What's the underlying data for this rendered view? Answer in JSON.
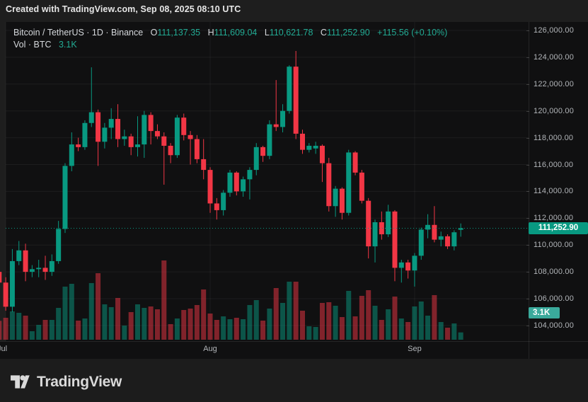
{
  "attribution": "Created with TradingView.com, Sep 08, 2025 08:10 UTC",
  "legend": {
    "symbol_title": "Bitcoin / TetherUS · 1D · Binance",
    "o_label": "O",
    "o_value": "111,137.35",
    "h_label": "H",
    "h_value": "111,609.04",
    "l_label": "L",
    "l_value": "110,621.78",
    "c_label": "C",
    "c_value": "111,252.90",
    "change": "+115.56 (+0.10%)",
    "vol_label": "Vol · BTC",
    "vol_value": "3.1K"
  },
  "price_scale": {
    "labels": [
      {
        "text": "126,000.00",
        "price": 126
      },
      {
        "text": "124,000.00",
        "price": 124
      },
      {
        "text": "122,000.00",
        "price": 122
      },
      {
        "text": "120,000.00",
        "price": 120
      },
      {
        "text": "118,000.00",
        "price": 118
      },
      {
        "text": "116,000.00",
        "price": 116
      },
      {
        "text": "114,000.00",
        "price": 114
      },
      {
        "text": "112,000.00",
        "price": 112
      },
      {
        "text": "110,000.00",
        "price": 110
      },
      {
        "text": "108,000.00",
        "price": 108
      },
      {
        "text": "106,000.00",
        "price": 106
      },
      {
        "text": "104,000.00",
        "price": 104
      }
    ],
    "last_price_badge": {
      "text": "111,252.90",
      "price": 111.2529
    },
    "volume_badge": {
      "text": "3.1K",
      "price": 104.95
    }
  },
  "time_scale": {
    "labels": [
      {
        "text": "Jul",
        "index": 1,
        "x": 3
      },
      {
        "text": "Aug",
        "index": 32
      },
      {
        "text": "Sep",
        "index": 63
      }
    ]
  },
  "logo": {
    "text": "TradingView"
  },
  "colors": {
    "up": "#089981",
    "down": "#f23645",
    "vol_up": "rgba(8,153,129,0.5)",
    "vol_down": "rgba(242,54,69,0.5)",
    "grid": "rgba(255,255,255,0.055)",
    "last_price_line": "#089981",
    "last_price_badge_bg": "#089981",
    "volume_badge_bg": "#3aa99b",
    "legend_value": "#22ab94"
  },
  "chart_data": {
    "type": "candlestick",
    "title": "Bitcoin / TetherUS · 1D · Binance",
    "price_axis": {
      "min": 104000,
      "max": 126000,
      "step": 2000,
      "grid": true
    },
    "volume_axis": {
      "max_k": 33.6
    },
    "last_price": 111252.9,
    "columns": [
      "date",
      "open_k",
      "high_k",
      "low_k",
      "close_k",
      "volume_k_btc"
    ],
    "candles": [
      [
        "Jun 30",
        108.0,
        108.4,
        106.8,
        107.2,
        8.0
      ],
      [
        "Jul 1",
        107.2,
        107.6,
        105.1,
        105.4,
        9.3
      ],
      [
        "Jul 2",
        105.4,
        109.7,
        105.0,
        108.8,
        12.0
      ],
      [
        "Jul 3",
        108.8,
        110.3,
        108.5,
        109.6,
        11.4
      ],
      [
        "Jul 4",
        109.6,
        110.1,
        107.3,
        108.0,
        10.2
      ],
      [
        "Jul 5",
        108.0,
        108.5,
        107.6,
        108.2,
        3.6
      ],
      [
        "Jul 6",
        108.2,
        108.9,
        107.6,
        108.3,
        6.3
      ],
      [
        "Jul 7",
        108.3,
        109.2,
        107.4,
        108.0,
        8.4
      ],
      [
        "Jul 8",
        108.0,
        109.3,
        107.7,
        108.8,
        8.4
      ],
      [
        "Jul 9",
        108.8,
        111.8,
        108.6,
        111.2,
        13.5
      ],
      [
        "Jul 10",
        111.2,
        116.1,
        110.9,
        115.9,
        22.5
      ],
      [
        "Jul 11",
        115.9,
        118.4,
        115.5,
        117.5,
        23.7
      ],
      [
        "Jul 12",
        117.5,
        118.0,
        117.0,
        117.3,
        8.1
      ],
      [
        "Jul 13",
        117.3,
        119.3,
        117.1,
        119.1,
        9.0
      ],
      [
        "Jul 14",
        119.1,
        123.25,
        118.8,
        119.9,
        24.0
      ],
      [
        "Jul 15",
        119.9,
        120.1,
        115.9,
        117.7,
        28.2
      ],
      [
        "Jul 16",
        117.7,
        119.1,
        117.2,
        118.75,
        15.0
      ],
      [
        "Jul 17",
        118.75,
        120.2,
        117.9,
        119.4,
        13.8
      ],
      [
        "Jul 18",
        119.4,
        120.5,
        117.3,
        117.9,
        17.7
      ],
      [
        "Jul 19",
        117.9,
        118.6,
        117.4,
        118.1,
        6.0
      ],
      [
        "Jul 20",
        118.1,
        118.3,
        116.7,
        117.3,
        11.7
      ],
      [
        "Jul 21",
        117.3,
        119.6,
        116.6,
        117.5,
        15.0
      ],
      [
        "Jul 22",
        117.5,
        120.0,
        116.5,
        119.7,
        13.5
      ],
      [
        "Jul 23",
        119.7,
        119.9,
        117.5,
        118.5,
        14.1
      ],
      [
        "Jul 24",
        118.5,
        119.0,
        117.9,
        118.1,
        12.9
      ],
      [
        "Jul 25",
        118.1,
        118.4,
        114.5,
        117.4,
        33.6
      ],
      [
        "Jul 26",
        117.4,
        117.6,
        116.1,
        116.7,
        6.6
      ],
      [
        "Jul 27",
        116.7,
        119.7,
        116.5,
        119.5,
        9.0
      ],
      [
        "Jul 28",
        119.5,
        119.8,
        117.8,
        118.2,
        12.6
      ],
      [
        "Jul 29",
        118.2,
        118.5,
        116.0,
        117.9,
        13.2
      ],
      [
        "Jul 30",
        117.9,
        118.2,
        116.1,
        116.4,
        14.7
      ],
      [
        "Jul 31",
        116.4,
        117.9,
        114.9,
        115.6,
        21.3
      ],
      [
        "Aug 1",
        115.6,
        115.8,
        112.4,
        113.1,
        11.1
      ],
      [
        "Aug 2",
        113.1,
        113.5,
        111.9,
        112.6,
        8.4
      ],
      [
        "Aug 3",
        112.6,
        114.1,
        112.2,
        113.9,
        9.9
      ],
      [
        "Aug 4",
        113.9,
        115.6,
        113.6,
        115.4,
        8.7
      ],
      [
        "Aug 5",
        115.4,
        115.5,
        113.7,
        114.0,
        9.3
      ],
      [
        "Aug 6",
        114.0,
        115.1,
        113.6,
        114.9,
        8.7
      ],
      [
        "Aug 7",
        114.9,
        115.8,
        113.4,
        115.6,
        14.7
      ],
      [
        "Aug 8",
        115.6,
        117.6,
        115.2,
        117.3,
        16.8
      ],
      [
        "Aug 9",
        117.3,
        117.4,
        116.2,
        116.65,
        8.1
      ],
      [
        "Aug 10",
        116.65,
        119.3,
        116.4,
        119.0,
        13.2
      ],
      [
        "Aug 11",
        119.0,
        122.3,
        118.5,
        118.8,
        21.9
      ],
      [
        "Aug 12",
        118.8,
        120.5,
        118.4,
        120.0,
        15.6
      ],
      [
        "Aug 13",
        120.0,
        123.4,
        119.8,
        123.3,
        24.6
      ],
      [
        "Aug 14",
        123.3,
        124.47,
        117.9,
        118.3,
        24.6
      ],
      [
        "Aug 15",
        118.3,
        118.6,
        116.8,
        117.1,
        12.3
      ],
      [
        "Aug 16",
        117.1,
        117.6,
        116.9,
        117.4,
        5.7
      ],
      [
        "Aug 17",
        117.2,
        117.7,
        116.8,
        117.4,
        5.4
      ],
      [
        "Aug 18",
        117.4,
        117.5,
        114.7,
        116.1,
        15.6
      ],
      [
        "Aug 19",
        116.1,
        116.5,
        112.5,
        112.9,
        15.9
      ],
      [
        "Aug 20",
        112.9,
        114.4,
        112.1,
        114.2,
        14.4
      ],
      [
        "Aug 21",
        114.2,
        114.3,
        111.9,
        112.4,
        9.6
      ],
      [
        "Aug 22",
        112.4,
        117.1,
        112.2,
        116.9,
        20.7
      ],
      [
        "Aug 23",
        116.9,
        117.0,
        115.2,
        115.4,
        9.9
      ],
      [
        "Aug 24",
        115.4,
        115.6,
        113.1,
        113.3,
        18.6
      ],
      [
        "Aug 25",
        113.3,
        113.5,
        109.0,
        109.9,
        21.0
      ],
      [
        "Aug 26",
        109.9,
        111.9,
        108.7,
        111.7,
        14.4
      ],
      [
        "Aug 27",
        111.7,
        112.5,
        110.4,
        110.8,
        8.4
      ],
      [
        "Aug 28",
        110.8,
        113.0,
        110.6,
        112.5,
        12.9
      ],
      [
        "Aug 29",
        112.5,
        112.6,
        107.3,
        108.3,
        18.3
      ],
      [
        "Aug 30",
        108.3,
        108.9,
        107.2,
        108.7,
        9.0
      ],
      [
        "Aug 31",
        108.7,
        108.9,
        107.5,
        108.1,
        7.5
      ],
      [
        "Sep 1",
        108.1,
        109.4,
        106.9,
        109.2,
        14.1
      ],
      [
        "Sep 2",
        109.2,
        111.3,
        108.9,
        111.15,
        16.2
      ],
      [
        "Sep 3",
        111.15,
        112.3,
        110.5,
        111.5,
        10.2
      ],
      [
        "Sep 4",
        111.5,
        112.9,
        110.2,
        110.4,
        18.9
      ],
      [
        "Sep 5",
        110.4,
        111.0,
        109.9,
        110.65,
        7.5
      ],
      [
        "Sep 6",
        110.65,
        110.8,
        109.7,
        109.9,
        5.1
      ],
      [
        "Sep 7",
        109.9,
        111.1,
        109.6,
        110.95,
        6.9
      ],
      [
        "Sep 8",
        111.137,
        111.609,
        110.622,
        111.253,
        3.1
      ]
    ]
  }
}
